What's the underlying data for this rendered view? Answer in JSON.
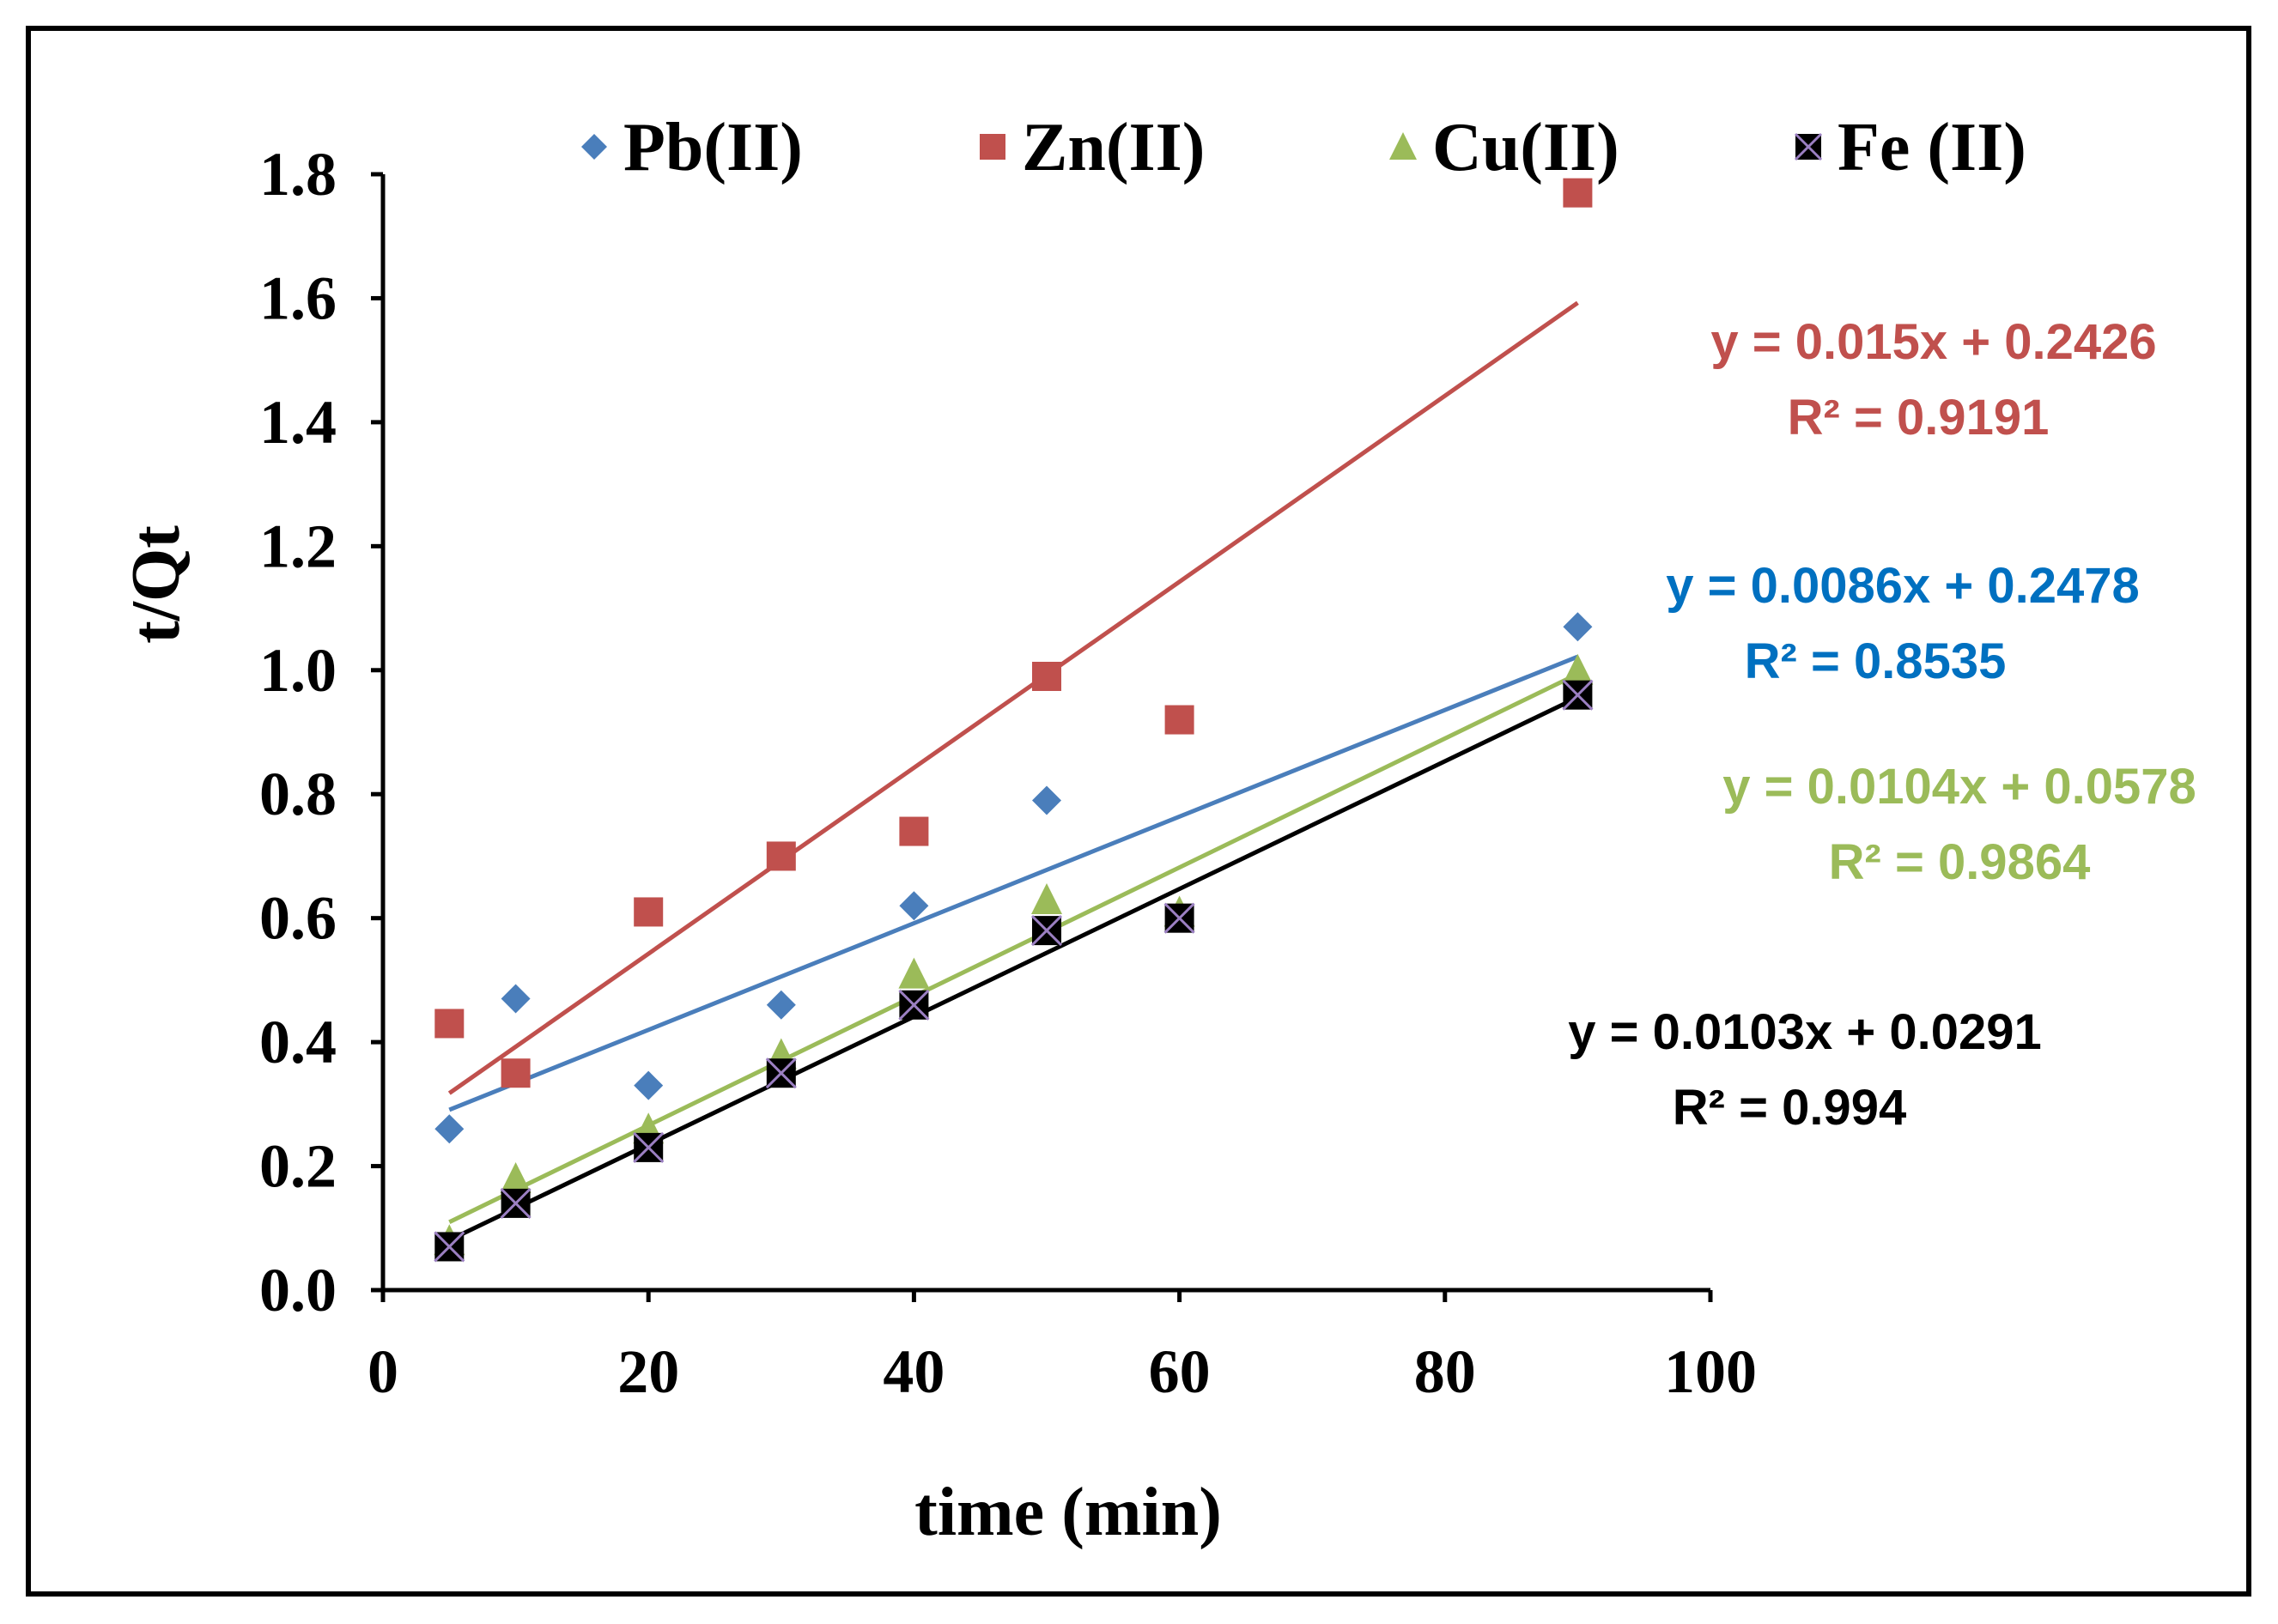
{
  "chart_data": {
    "type": "scatter",
    "title": "",
    "xlabel": "time (min)",
    "ylabel": "t/Qt",
    "xlim": [
      0,
      100
    ],
    "ylim": [
      0,
      1.8
    ],
    "xticks": [
      0,
      20,
      40,
      60,
      80,
      100
    ],
    "yticks": [
      0.0,
      0.2,
      0.4,
      0.6,
      0.8,
      1.0,
      1.2,
      1.4,
      1.6,
      1.8
    ],
    "xtick_labels": [
      "0",
      "20",
      "40",
      "60",
      "80",
      "100"
    ],
    "ytick_labels": [
      "0.0",
      "0.2",
      "0.4",
      "0.6",
      "0.8",
      "1.0",
      "1.2",
      "1.4",
      "1.6",
      "1.8"
    ],
    "grid": false,
    "legend_position": "top",
    "series": [
      {
        "name": "Pb(II)",
        "marker": "diamond",
        "color": "#4a7ebb",
        "x": [
          5,
          10,
          20,
          30,
          40,
          50,
          90
        ],
        "y": [
          0.26,
          0.47,
          0.33,
          0.46,
          0.62,
          0.79,
          1.07
        ],
        "trendline": {
          "slope": 0.0086,
          "intercept": 0.2478,
          "x_range": [
            5,
            90
          ],
          "color": "#4a7ebb"
        },
        "equation": "y = 0.0086x + 0.2478",
        "r2": "R² = 0.8535",
        "label_color": "#0070c0"
      },
      {
        "name": "Zn(II)",
        "marker": "square",
        "color": "#c0504d",
        "x": [
          5,
          10,
          20,
          30,
          40,
          50,
          60,
          90
        ],
        "y": [
          0.43,
          0.35,
          0.61,
          0.7,
          0.74,
          0.99,
          0.92,
          1.77
        ],
        "trendline": {
          "slope": 0.015,
          "intercept": 0.2426,
          "x_range": [
            5,
            90
          ],
          "color": "#c0504d"
        },
        "equation": "y = 0.015x + 0.2426",
        "r2": "R² = 0.9191",
        "label_color": "#c0504d"
      },
      {
        "name": "Cu(II)",
        "marker": "triangle",
        "color": "#9bbb59",
        "x": [
          5,
          10,
          20,
          30,
          40,
          50,
          60,
          90
        ],
        "y": [
          0.08,
          0.18,
          0.26,
          0.38,
          0.51,
          0.63,
          0.61,
          1.0
        ],
        "trendline": {
          "slope": 0.0104,
          "intercept": 0.0578,
          "x_range": [
            5,
            90
          ],
          "color": "#9bbb59"
        },
        "equation": "y = 0.0104x + 0.0578",
        "r2": "R² = 0.9864",
        "label_color": "#9bbb59"
      },
      {
        "name": "Fe (II)",
        "marker": "square-x",
        "color": "#000000",
        "x": [
          5,
          10,
          20,
          30,
          40,
          50,
          60,
          90
        ],
        "y": [
          0.07,
          0.14,
          0.23,
          0.35,
          0.46,
          0.58,
          0.6,
          0.96
        ],
        "trendline": {
          "slope": 0.0103,
          "intercept": 0.0291,
          "x_range": [
            5,
            90
          ],
          "color": "#000000"
        },
        "equation": "y = 0.0103x + 0.0291",
        "r2": "R² = 0.994",
        "label_color": "#000000"
      }
    ]
  }
}
